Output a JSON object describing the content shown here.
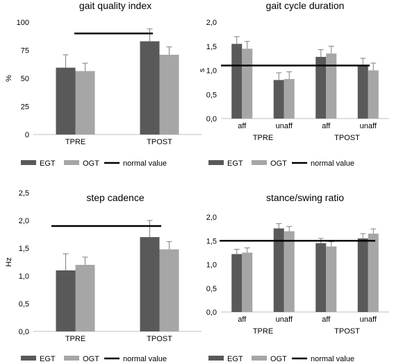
{
  "chart_data": [
    {
      "id": "gqi",
      "type": "bar",
      "title": "gait quality index",
      "ylabel": "%",
      "ylim": [
        0,
        100
      ],
      "yticks": [
        "0",
        "25",
        "50",
        "75",
        "100"
      ],
      "categories": [
        "TPRE",
        "TPOST"
      ],
      "groups": [],
      "series": [
        {
          "name": "EGT",
          "values": [
            59.5,
            83
          ],
          "errors": [
            11.5,
            11
          ]
        },
        {
          "name": "OGT",
          "values": [
            56.5,
            71
          ],
          "errors": [
            7,
            7
          ]
        }
      ],
      "normal_value": {
        "name": "normal value",
        "value": 90
      },
      "legend": [
        "EGT",
        "OGT",
        "normal value"
      ]
    },
    {
      "id": "gcd",
      "type": "bar",
      "title": "gait cycle duration",
      "ylabel": "s",
      "ylim": [
        0,
        2
      ],
      "yticks": [
        "0,0",
        "0,5",
        "1,0",
        "1,5",
        "2,0"
      ],
      "categories": [
        "aff",
        "unaff",
        "aff",
        "unaff"
      ],
      "groups": [
        {
          "label": "TPRE",
          "span": [
            0,
            1
          ]
        },
        {
          "label": "TPOST",
          "span": [
            2,
            3
          ]
        }
      ],
      "series": [
        {
          "name": "EGT",
          "values": [
            1.55,
            0.8,
            1.28,
            1.1
          ],
          "errors": [
            0.15,
            0.15,
            0.15,
            0.15
          ]
        },
        {
          "name": "OGT",
          "values": [
            1.45,
            0.82,
            1.35,
            1.0
          ],
          "errors": [
            0.15,
            0.15,
            0.15,
            0.15
          ]
        }
      ],
      "normal_value": {
        "name": "normal value",
        "value": 1.1
      },
      "legend": [
        "EGT",
        "OGT",
        "normal value"
      ]
    },
    {
      "id": "cad",
      "type": "bar",
      "title": "step cadence",
      "ylabel": "Hz",
      "ylim": [
        0,
        2.5
      ],
      "yticks": [
        "0,0",
        "0,5",
        "1,0",
        "1,5",
        "2,0",
        "2,5"
      ],
      "categories": [
        "TPRE",
        "TPOST"
      ],
      "groups": [],
      "series": [
        {
          "name": "EGT",
          "values": [
            1.1,
            1.7
          ],
          "errors": [
            0.3,
            0.3
          ]
        },
        {
          "name": "OGT",
          "values": [
            1.2,
            1.48
          ],
          "errors": [
            0.14,
            0.14
          ]
        }
      ],
      "normal_value": {
        "name": "normal value",
        "value": 1.9
      },
      "legend": [
        "EGT",
        "OGT",
        "normal value"
      ]
    },
    {
      "id": "ssr",
      "type": "bar",
      "title": "stance/swing ratio",
      "ylabel": "",
      "ylim": [
        0,
        2
      ],
      "yticks": [
        "0,0",
        "0,5",
        "1,0",
        "1,5",
        "2,0"
      ],
      "categories": [
        "aff",
        "unaff",
        "aff",
        "unaff"
      ],
      "groups": [
        {
          "label": "TPRE",
          "span": [
            0,
            1
          ]
        },
        {
          "label": "TPOST",
          "span": [
            2,
            3
          ]
        }
      ],
      "series": [
        {
          "name": "EGT",
          "values": [
            1.22,
            1.76,
            1.45,
            1.55
          ],
          "errors": [
            0.1,
            0.1,
            0.1,
            0.1
          ]
        },
        {
          "name": "OGT",
          "values": [
            1.25,
            1.7,
            1.38,
            1.65
          ],
          "errors": [
            0.1,
            0.1,
            0.1,
            0.1
          ]
        }
      ],
      "normal_value": {
        "name": "normal value",
        "value": 1.5
      },
      "legend": [
        "EGT",
        "OGT",
        "normal value"
      ]
    }
  ],
  "colors": {
    "EGT": "#595959",
    "OGT": "#a6a6a6",
    "normal_value": "#000000",
    "error_bar": "#7f7f7f",
    "axis": "#bfbfbf"
  }
}
